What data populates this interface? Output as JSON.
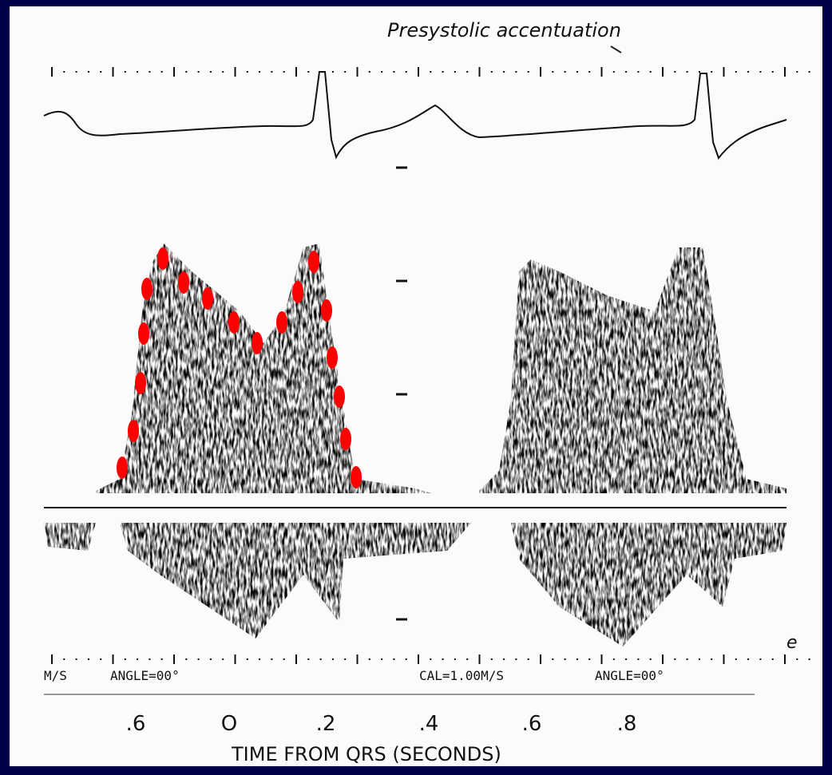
{
  "header": {
    "annotation": "Presystolic accentuation"
  },
  "calibration": {
    "left": [
      "M/S",
      "ANGLE=00°"
    ],
    "right": [
      "CAL=1.00M/S",
      "ANGLE=00°"
    ],
    "edge": "e"
  },
  "axis": {
    "tick_labels": [
      ".6",
      "O",
      ".2",
      ".4",
      ".6",
      ".8"
    ],
    "title": "TIME FROM QRS (SECONDS)"
  }
}
